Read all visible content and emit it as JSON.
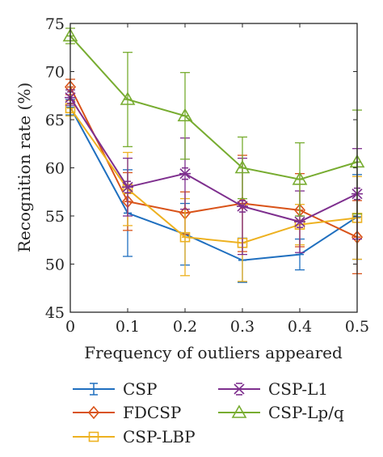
{
  "chart_data": {
    "type": "line",
    "title": "",
    "xlabel": "Frequency of outliers appeared",
    "ylabel": "Recognition rate (%)",
    "x": [
      0,
      0.1,
      0.2,
      0.3,
      0.4,
      0.5
    ],
    "xticks": [
      "0",
      "0.1",
      "0.2",
      "0.3",
      "0.4",
      "0.5"
    ],
    "yticks": [
      "45",
      "50",
      "55",
      "60",
      "65",
      "70",
      "75"
    ],
    "xlim": [
      0,
      0.5
    ],
    "ylim": [
      45,
      75
    ],
    "grid": false,
    "legend_position": "bottom",
    "series": [
      {
        "name": "CSP",
        "color": "#1f6fbf",
        "marker": "bar",
        "values": [
          66.3,
          55.3,
          53.1,
          50.4,
          51.0,
          54.9
        ],
        "errors": [
          0.8,
          4.5,
          3.2,
          2.3,
          1.6,
          4.4
        ]
      },
      {
        "name": "FDCSP",
        "color": "#d95319",
        "marker": "diamond",
        "values": [
          68.4,
          56.5,
          55.3,
          56.3,
          55.6,
          52.8
        ],
        "errors": [
          0.8,
          3.0,
          2.2,
          5.0,
          3.8,
          3.8
        ]
      },
      {
        "name": "CSP-LBP",
        "color": "#edb120",
        "marker": "square",
        "values": [
          66.2,
          57.8,
          52.8,
          52.2,
          54.1,
          54.8
        ],
        "errors": [
          0.8,
          3.8,
          4.0,
          4.0,
          2.1,
          4.3
        ]
      },
      {
        "name": "CSP-L1",
        "color": "#7e2f8e",
        "marker": "star",
        "values": [
          67.3,
          58.0,
          59.4,
          56.0,
          54.4,
          57.3
        ],
        "errors": [
          0.8,
          3.0,
          3.7,
          5.0,
          3.2,
          4.7
        ]
      },
      {
        "name": "CSP-Lp/q",
        "color": "#77ac30",
        "marker": "triangle",
        "values": [
          73.7,
          67.1,
          65.4,
          60.0,
          58.8,
          60.6
        ],
        "errors": [
          0.8,
          4.9,
          4.5,
          3.2,
          3.8,
          5.4
        ]
      }
    ]
  }
}
